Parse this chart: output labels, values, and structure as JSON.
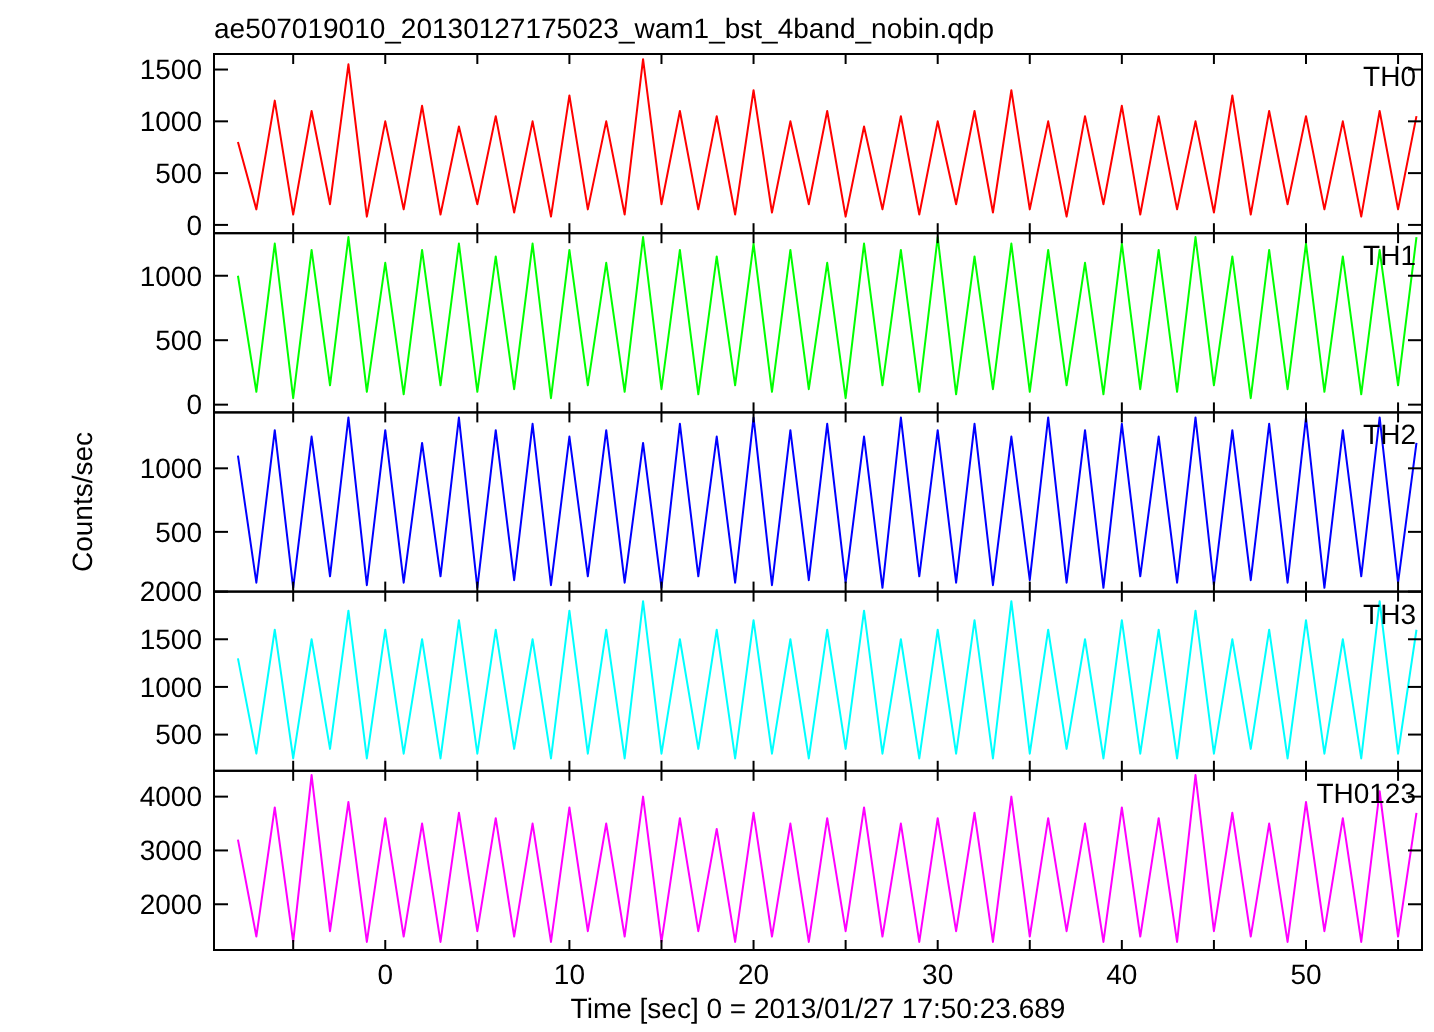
{
  "chart_data": [
    {
      "type": "line",
      "title": "ae507019010_20130127175023_wam1_bst_4band_nobin.qdp",
      "x": [
        -8,
        -7,
        -6,
        -5,
        -4,
        -3,
        -2,
        -1,
        0,
        1,
        2,
        3,
        4,
        5,
        6,
        7,
        8,
        9,
        10,
        11,
        12,
        13,
        14,
        15,
        16,
        17,
        18,
        19,
        20,
        21,
        22,
        23,
        24,
        25,
        26,
        27,
        28,
        29,
        30,
        31,
        32,
        33,
        34,
        35,
        36,
        37,
        38,
        39,
        40,
        41,
        42,
        43,
        44,
        45,
        46,
        47,
        48,
        49,
        50,
        51,
        52,
        53,
        54,
        55,
        56
      ],
      "xlim": [
        -9.3,
        56.3
      ],
      "xticks": [
        {
          "value": -5,
          "label": null
        },
        {
          "value": 0,
          "label": null
        },
        {
          "value": 5,
          "label": null
        },
        {
          "value": 10,
          "label": null
        },
        {
          "value": 15,
          "label": null
        },
        {
          "value": 20,
          "label": null
        },
        {
          "value": 25,
          "label": null
        },
        {
          "value": 30,
          "label": null
        },
        {
          "value": 35,
          "label": null
        },
        {
          "value": 40,
          "label": null
        },
        {
          "value": 45,
          "label": null
        },
        {
          "value": 50,
          "label": null
        },
        {
          "value": 55,
          "label": null
        }
      ],
      "ylim": [
        -80,
        1650
      ],
      "yticks": [
        0,
        500,
        1000,
        1500
      ],
      "tick_labels": "y",
      "line_style": "solid",
      "series": [
        {
          "name": "TH0",
          "color": "#ff0000",
          "values": [
            800,
            150,
            1200,
            100,
            1100,
            200,
            1550,
            80,
            1000,
            150,
            1150,
            100,
            950,
            200,
            1050,
            120,
            1000,
            80,
            1250,
            150,
            1000,
            100,
            1600,
            200,
            1100,
            150,
            1050,
            100,
            1300,
            120,
            1000,
            200,
            1100,
            80,
            950,
            150,
            1050,
            100,
            1000,
            200,
            1100,
            120,
            1300,
            150,
            1000,
            80,
            1050,
            200,
            1150,
            100,
            1050,
            150,
            1000,
            120,
            1250,
            100,
            1100,
            200,
            1050,
            150,
            1000,
            80,
            1100,
            150,
            1050
          ]
        }
      ]
    },
    {
      "type": "line",
      "x": [
        -8,
        -7,
        -6,
        -5,
        -4,
        -3,
        -2,
        -1,
        0,
        1,
        2,
        3,
        4,
        5,
        6,
        7,
        8,
        9,
        10,
        11,
        12,
        13,
        14,
        15,
        16,
        17,
        18,
        19,
        20,
        21,
        22,
        23,
        24,
        25,
        26,
        27,
        28,
        29,
        30,
        31,
        32,
        33,
        34,
        35,
        36,
        37,
        38,
        39,
        40,
        41,
        42,
        43,
        44,
        45,
        46,
        47,
        48,
        49,
        50,
        51,
        52,
        53,
        54,
        55,
        56
      ],
      "xlim": [
        -9.3,
        56.3
      ],
      "xticks": [
        {
          "value": -5,
          "label": null
        },
        {
          "value": 0,
          "label": null
        },
        {
          "value": 5,
          "label": null
        },
        {
          "value": 10,
          "label": null
        },
        {
          "value": 15,
          "label": null
        },
        {
          "value": 20,
          "label": null
        },
        {
          "value": 25,
          "label": null
        },
        {
          "value": 30,
          "label": null
        },
        {
          "value": 35,
          "label": null
        },
        {
          "value": 40,
          "label": null
        },
        {
          "value": 45,
          "label": null
        },
        {
          "value": 50,
          "label": null
        },
        {
          "value": 55,
          "label": null
        }
      ],
      "ylim": [
        -60,
        1330
      ],
      "yticks": [
        0,
        500,
        1000
      ],
      "tick_labels": "y",
      "line_style": "solid",
      "series": [
        {
          "name": "TH1",
          "color": "#00ff00",
          "values": [
            1000,
            100,
            1250,
            50,
            1200,
            150,
            1300,
            100,
            1100,
            80,
            1200,
            150,
            1250,
            100,
            1150,
            120,
            1250,
            50,
            1200,
            150,
            1100,
            100,
            1300,
            120,
            1200,
            80,
            1150,
            150,
            1250,
            100,
            1200,
            120,
            1100,
            50,
            1250,
            150,
            1200,
            100,
            1300,
            80,
            1150,
            120,
            1250,
            100,
            1200,
            150,
            1100,
            80,
            1250,
            120,
            1200,
            100,
            1300,
            150,
            1150,
            50,
            1200,
            120,
            1250,
            100,
            1150,
            80,
            1200,
            150,
            1300
          ]
        }
      ]
    },
    {
      "type": "line",
      "ylabel": "Counts/sec",
      "x": [
        -8,
        -7,
        -6,
        -5,
        -4,
        -3,
        -2,
        -1,
        0,
        1,
        2,
        3,
        4,
        5,
        6,
        7,
        8,
        9,
        10,
        11,
        12,
        13,
        14,
        15,
        16,
        17,
        18,
        19,
        20,
        21,
        22,
        23,
        24,
        25,
        26,
        27,
        28,
        29,
        30,
        31,
        32,
        33,
        34,
        35,
        36,
        37,
        38,
        39,
        40,
        41,
        42,
        43,
        44,
        45,
        46,
        47,
        48,
        49,
        50,
        51,
        52,
        53,
        54,
        55,
        56
      ],
      "xlim": [
        -9.3,
        56.3
      ],
      "xticks": [
        {
          "value": -5,
          "label": null
        },
        {
          "value": 0,
          "label": null
        },
        {
          "value": 5,
          "label": null
        },
        {
          "value": 10,
          "label": null
        },
        {
          "value": 15,
          "label": null
        },
        {
          "value": 20,
          "label": null
        },
        {
          "value": 25,
          "label": null
        },
        {
          "value": 30,
          "label": null
        },
        {
          "value": 35,
          "label": null
        },
        {
          "value": 40,
          "label": null
        },
        {
          "value": 45,
          "label": null
        },
        {
          "value": 50,
          "label": null
        },
        {
          "value": 55,
          "label": null
        }
      ],
      "ylim": [
        30,
        1440
      ],
      "yticks": [
        500,
        1000
      ],
      "tick_labels": "y",
      "line_style": "solid",
      "series": [
        {
          "name": "TH2",
          "color": "#0000ff",
          "values": [
            1100,
            100,
            1300,
            60,
            1250,
            150,
            1400,
            80,
            1300,
            100,
            1200,
            150,
            1400,
            60,
            1300,
            120,
            1350,
            80,
            1250,
            150,
            1300,
            100,
            1200,
            60,
            1350,
            150,
            1250,
            100,
            1400,
            80,
            1300,
            120,
            1350,
            100,
            1250,
            60,
            1400,
            150,
            1300,
            100,
            1350,
            80,
            1250,
            120,
            1400,
            100,
            1300,
            60,
            1350,
            150,
            1250,
            100,
            1400,
            80,
            1300,
            120,
            1350,
            100,
            1400,
            60,
            1300,
            150,
            1400,
            100,
            1200
          ]
        }
      ]
    },
    {
      "type": "line",
      "x": [
        -8,
        -7,
        -6,
        -5,
        -4,
        -3,
        -2,
        -1,
        0,
        1,
        2,
        3,
        4,
        5,
        6,
        7,
        8,
        9,
        10,
        11,
        12,
        13,
        14,
        15,
        16,
        17,
        18,
        19,
        20,
        21,
        22,
        23,
        24,
        25,
        26,
        27,
        28,
        29,
        30,
        31,
        32,
        33,
        34,
        35,
        36,
        37,
        38,
        39,
        40,
        41,
        42,
        43,
        44,
        45,
        46,
        47,
        48,
        49,
        50,
        51,
        52,
        53,
        54,
        55,
        56
      ],
      "xlim": [
        -9.3,
        56.3
      ],
      "xticks": [
        {
          "value": -5,
          "label": null
        },
        {
          "value": 0,
          "label": null
        },
        {
          "value": 5,
          "label": null
        },
        {
          "value": 10,
          "label": null
        },
        {
          "value": 15,
          "label": null
        },
        {
          "value": 20,
          "label": null
        },
        {
          "value": 25,
          "label": null
        },
        {
          "value": 30,
          "label": null
        },
        {
          "value": 35,
          "label": null
        },
        {
          "value": 40,
          "label": null
        },
        {
          "value": 45,
          "label": null
        },
        {
          "value": 50,
          "label": null
        },
        {
          "value": 55,
          "label": null
        }
      ],
      "ylim": [
        120,
        2000
      ],
      "yticks": [
        500,
        1000,
        1500,
        2000
      ],
      "tick_labels": "y",
      "line_style": "solid",
      "series": [
        {
          "name": "TH3",
          "color": "#00ffff",
          "values": [
            1300,
            300,
            1600,
            250,
            1500,
            350,
            1800,
            250,
            1600,
            300,
            1500,
            250,
            1700,
            300,
            1600,
            350,
            1500,
            250,
            1800,
            300,
            1600,
            250,
            1900,
            300,
            1500,
            350,
            1600,
            250,
            1700,
            300,
            1500,
            250,
            1600,
            350,
            1800,
            300,
            1500,
            250,
            1600,
            300,
            1700,
            250,
            1900,
            300,
            1600,
            350,
            1500,
            250,
            1700,
            300,
            1600,
            250,
            1800,
            300,
            1500,
            350,
            1600,
            250,
            1700,
            300,
            1500,
            250,
            1900,
            300,
            1600
          ]
        }
      ]
    },
    {
      "type": "line",
      "xlabel": "Time [sec] 0 = 2013/01/27 17:50:23.689",
      "x": [
        -8,
        -7,
        -6,
        -5,
        -4,
        -3,
        -2,
        -1,
        0,
        1,
        2,
        3,
        4,
        5,
        6,
        7,
        8,
        9,
        10,
        11,
        12,
        13,
        14,
        15,
        16,
        17,
        18,
        19,
        20,
        21,
        22,
        23,
        24,
        25,
        26,
        27,
        28,
        29,
        30,
        31,
        32,
        33,
        34,
        35,
        36,
        37,
        38,
        39,
        40,
        41,
        42,
        43,
        44,
        45,
        46,
        47,
        48,
        49,
        50,
        51,
        52,
        53,
        54,
        55,
        56
      ],
      "xlim": [
        -9.3,
        56.3
      ],
      "xticks": [
        {
          "value": -5,
          "label": null
        },
        0,
        {
          "value": 5,
          "label": null
        },
        10,
        {
          "value": 15,
          "label": null
        },
        20,
        {
          "value": 25,
          "label": null
        },
        30,
        {
          "value": 35,
          "label": null
        },
        40,
        {
          "value": 45,
          "label": null
        },
        50,
        {
          "value": 55,
          "label": null
        }
      ],
      "ylim": [
        1150,
        4480
      ],
      "yticks": [
        2000,
        3000,
        4000
      ],
      "line_style": "solid",
      "series": [
        {
          "name": "TH0123",
          "color": "#ff00ff",
          "values": [
            3200,
            1400,
            3800,
            1300,
            4400,
            1500,
            3900,
            1300,
            3600,
            1400,
            3500,
            1300,
            3700,
            1500,
            3600,
            1400,
            3500,
            1300,
            3800,
            1500,
            3500,
            1400,
            4000,
            1300,
            3600,
            1500,
            3400,
            1300,
            3700,
            1400,
            3500,
            1300,
            3600,
            1500,
            3800,
            1400,
            3500,
            1300,
            3600,
            1500,
            3700,
            1300,
            4000,
            1400,
            3600,
            1500,
            3500,
            1300,
            3800,
            1400,
            3600,
            1300,
            4400,
            1500,
            3700,
            1400,
            3500,
            1300,
            3900,
            1500,
            3600,
            1300,
            4100,
            1400,
            3700
          ]
        }
      ]
    }
  ]
}
